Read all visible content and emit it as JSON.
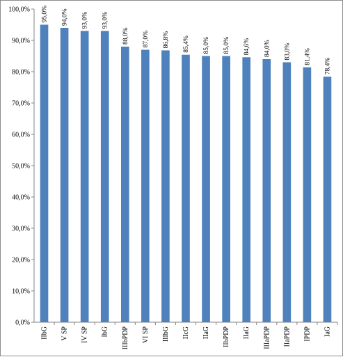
{
  "chart_data": {
    "type": "bar",
    "title": "",
    "xlabel": "",
    "ylabel": "",
    "ylim": [
      0,
      100
    ],
    "y_tick_step": 10,
    "y_tick_format": "percent-comma-1dp",
    "grid": false,
    "legend": "none",
    "bar_color": "#4F81BD",
    "categories": [
      "IIbG",
      "V SP",
      "IV SP",
      "IbG",
      "IIIbPDP",
      "VI SP",
      "IIIbG",
      "IIcG",
      "IIaG",
      "IIbPDP",
      "IIaG",
      "IIIaPDP",
      "IIaPDP",
      "IPDP",
      "IaG"
    ],
    "values": [
      95.0,
      94.0,
      93.0,
      93.0,
      88.0,
      87.0,
      86.8,
      85.4,
      85.0,
      85.0,
      84.6,
      84.0,
      83.0,
      81.4,
      78.4
    ],
    "data_labels": [
      "95,0%",
      "94,0%",
      "93,0%",
      "93,0%",
      "88,0%",
      "87,0%",
      "86,8%",
      "85,4%",
      "85,0%",
      "85,0%",
      "84,6%",
      "84,0%",
      "83,0%",
      "81,4%",
      "78,4%"
    ],
    "y_tick_labels": [
      "0,0%",
      "10,0%",
      "20,0%",
      "30,0%",
      "40,0%",
      "50,0%",
      "60,0%",
      "70,0%",
      "80,0%",
      "90,0%",
      "100,0%"
    ]
  }
}
